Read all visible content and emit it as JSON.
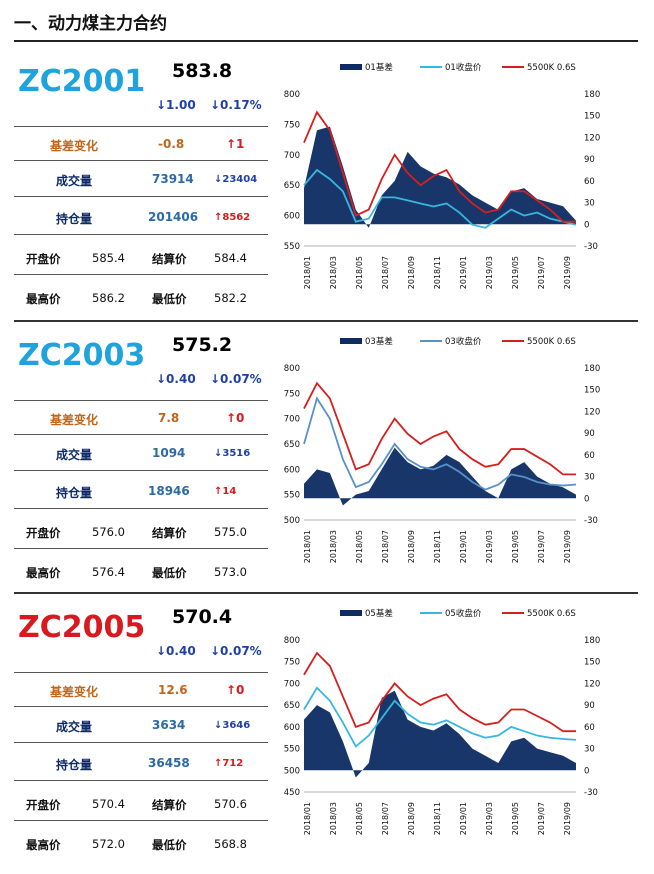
{
  "section_title": "一、动力煤主力合约",
  "colors": {
    "code_blue": "#1ea3dc",
    "code_red": "#d9191f",
    "down_blue": "#1f3fa8",
    "up_red": "#d9191f",
    "basis_orange": "#c0651a",
    "value_blue": "#2a6aa6",
    "dark_navy": "#0e2a66",
    "area_navy": "#0d2b62",
    "line_cyan": "#37b7df",
    "line_steel": "#5a90c8",
    "line_red": "#d61e1e"
  },
  "labels": {
    "basis_change": "基差变化",
    "volume": "成交量",
    "open_interest": "持仓量",
    "open": "开盘价",
    "settle": "结算价",
    "high": "最高价",
    "low": "最低价"
  },
  "contracts": [
    {
      "code": "ZC2001",
      "price": "583.8",
      "change_abs": "↓1.00",
      "change_pct": "↓0.17%",
      "basis_change": "-0.8",
      "basis_change_arrow": "↑1",
      "volume": "73914",
      "volume_change": "↓23404",
      "open_interest": "201406",
      "oi_change": "↑8562",
      "open": "585.4",
      "settle": "584.4",
      "high": "586.2",
      "low": "582.2"
    },
    {
      "code": "ZC2003",
      "price": "575.2",
      "change_abs": "↓0.40",
      "change_pct": "↓0.07%",
      "basis_change": "7.8",
      "basis_change_arrow": "↑0",
      "volume": "1094",
      "volume_change": "↓3516",
      "open_interest": "18946",
      "oi_change": "↑14",
      "open": "576.0",
      "settle": "575.0",
      "high": "576.4",
      "low": "573.0"
    },
    {
      "code": "ZC2005",
      "price": "570.4",
      "change_abs": "↓0.40",
      "change_pct": "↓0.07%",
      "basis_change": "12.6",
      "basis_change_arrow": "↑0",
      "volume": "3634",
      "volume_change": "↓3646",
      "open_interest": "36458",
      "oi_change": "↑712",
      "open": "570.4",
      "settle": "570.6",
      "high": "572.0",
      "low": "568.8"
    }
  ],
  "chart_data": [
    {
      "type": "line",
      "legend": [
        "01基差",
        "01收盘价",
        "5500K 0.6S"
      ],
      "legend_placement": "top",
      "x_ticks": [
        "2018/01",
        "2018/03",
        "2018/05",
        "2018/07",
        "2018/09",
        "2018/11",
        "2019/01",
        "2019/03",
        "2019/05",
        "2019/07",
        "2019/09"
      ],
      "ylim_left": [
        550,
        800
      ],
      "y_ticks_left": [
        550,
        600,
        650,
        700,
        750,
        800
      ],
      "ylim_right": [
        -30,
        180
      ],
      "y_ticks_right": [
        -30,
        0,
        30,
        60,
        90,
        120,
        150,
        180
      ],
      "x": [
        0,
        1,
        2,
        3,
        4,
        5,
        6,
        7,
        8,
        9,
        10,
        11,
        12,
        13,
        14,
        15,
        16,
        17,
        18,
        19,
        20,
        21
      ],
      "series": [
        {
          "name": "01基差",
          "kind": "area",
          "axis": "right",
          "values": [
            50,
            130,
            135,
            80,
            20,
            -5,
            40,
            60,
            100,
            80,
            70,
            65,
            55,
            40,
            30,
            20,
            45,
            50,
            35,
            30,
            25,
            5
          ]
        },
        {
          "name": "01收盘价",
          "kind": "line",
          "axis": "left",
          "values": [
            650,
            675,
            660,
            640,
            590,
            595,
            630,
            630,
            625,
            620,
            615,
            620,
            605,
            585,
            580,
            595,
            610,
            600,
            605,
            595,
            590,
            585
          ]
        },
        {
          "name": "5500K 0.6S",
          "kind": "line",
          "axis": "left",
          "values": [
            720,
            770,
            740,
            670,
            600,
            610,
            660,
            700,
            670,
            650,
            665,
            675,
            640,
            620,
            605,
            610,
            640,
            640,
            625,
            610,
            590,
            590
          ]
        }
      ]
    },
    {
      "type": "line",
      "legend": [
        "03基差",
        "03收盘价",
        "5500K 0.6S"
      ],
      "legend_placement": "top",
      "x_ticks": [
        "2018/01",
        "2018/03",
        "2018/05",
        "2018/07",
        "2018/09",
        "2018/11",
        "2019/01",
        "2019/03",
        "2019/05",
        "2019/07",
        "2019/09"
      ],
      "ylim_left": [
        500,
        800
      ],
      "y_ticks_left": [
        500,
        550,
        600,
        650,
        700,
        750,
        800
      ],
      "ylim_right": [
        -30,
        180
      ],
      "y_ticks_right": [
        -30,
        0,
        30,
        60,
        90,
        120,
        150,
        180
      ],
      "x": [
        0,
        1,
        2,
        3,
        4,
        5,
        6,
        7,
        8,
        9,
        10,
        11,
        12,
        13,
        14,
        15,
        16,
        17,
        18,
        19,
        20,
        21
      ],
      "series": [
        {
          "name": "03基差",
          "kind": "area",
          "axis": "right",
          "values": [
            20,
            40,
            35,
            -10,
            5,
            10,
            40,
            70,
            50,
            40,
            45,
            60,
            50,
            30,
            10,
            0,
            40,
            50,
            30,
            20,
            15,
            5
          ]
        },
        {
          "name": "03收盘价",
          "kind": "line",
          "axis": "left",
          "values": [
            650,
            740,
            700,
            620,
            565,
            575,
            610,
            650,
            620,
            605,
            600,
            610,
            595,
            575,
            560,
            570,
            590,
            585,
            575,
            570,
            568,
            570
          ]
        },
        {
          "name": "5500K 0.6S",
          "kind": "line",
          "axis": "left",
          "values": [
            720,
            770,
            740,
            670,
            600,
            610,
            660,
            700,
            670,
            650,
            665,
            675,
            640,
            620,
            605,
            610,
            640,
            640,
            625,
            610,
            590,
            590
          ]
        }
      ]
    },
    {
      "type": "line",
      "legend": [
        "05基差",
        "05收盘价",
        "5500K 0.6S"
      ],
      "legend_placement": "top",
      "x_ticks": [
        "2018/01",
        "2018/03",
        "2018/05",
        "2018/07",
        "2018/09",
        "2018/11",
        "2019/01",
        "2019/03",
        "2019/05",
        "2019/07",
        "2019/09"
      ],
      "ylim_left": [
        450,
        800
      ],
      "y_ticks_left": [
        450,
        500,
        550,
        600,
        650,
        700,
        750,
        800
      ],
      "ylim_right": [
        -30,
        180
      ],
      "y_ticks_right": [
        -30,
        0,
        30,
        60,
        90,
        120,
        150,
        180
      ],
      "x": [
        0,
        1,
        2,
        3,
        4,
        5,
        6,
        7,
        8,
        9,
        10,
        11,
        12,
        13,
        14,
        15,
        16,
        17,
        18,
        19,
        20,
        21
      ],
      "series": [
        {
          "name": "05基差",
          "kind": "area",
          "axis": "right",
          "values": [
            70,
            90,
            80,
            40,
            -10,
            10,
            100,
            110,
            70,
            60,
            55,
            65,
            50,
            30,
            20,
            10,
            40,
            45,
            30,
            25,
            20,
            10
          ]
        },
        {
          "name": "05收盘价",
          "kind": "line",
          "axis": "left",
          "values": [
            640,
            690,
            660,
            610,
            555,
            580,
            620,
            660,
            630,
            610,
            605,
            615,
            600,
            585,
            575,
            580,
            600,
            590,
            580,
            575,
            572,
            570
          ]
        },
        {
          "name": "5500K 0.6S",
          "kind": "line",
          "axis": "left",
          "values": [
            720,
            770,
            740,
            670,
            600,
            610,
            660,
            700,
            670,
            650,
            665,
            675,
            640,
            620,
            605,
            610,
            640,
            640,
            625,
            610,
            590,
            590
          ]
        }
      ]
    }
  ]
}
